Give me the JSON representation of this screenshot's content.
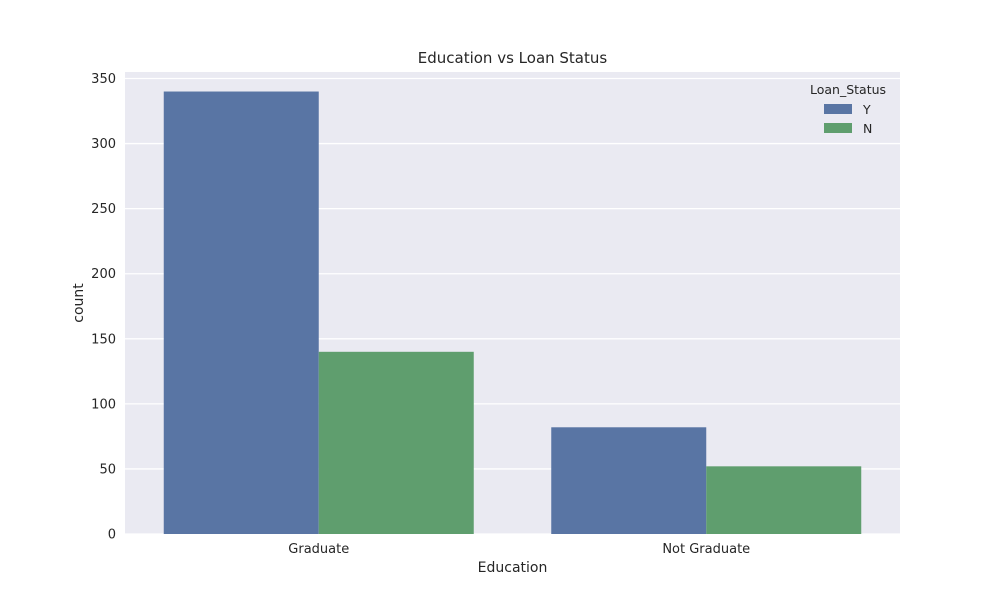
{
  "chart_data": {
    "type": "bar",
    "title": "Education vs Loan Status",
    "xlabel": "Education",
    "ylabel": "count",
    "categories": [
      "Graduate",
      "Not Graduate"
    ],
    "series": [
      {
        "name": "Y",
        "values": [
          340,
          82
        ],
        "color": "#5975a4"
      },
      {
        "name": "N",
        "values": [
          140,
          52
        ],
        "color": "#5f9e6e"
      }
    ],
    "ylim": [
      0,
      355
    ],
    "yticks": [
      0,
      50,
      100,
      150,
      200,
      250,
      300,
      350
    ],
    "grid": true,
    "legend": {
      "title": "Loan_Status",
      "placement": "top-right"
    },
    "colors": {
      "background": "#eaeaf2",
      "grid": "#ffffff",
      "text": "#262626"
    }
  }
}
